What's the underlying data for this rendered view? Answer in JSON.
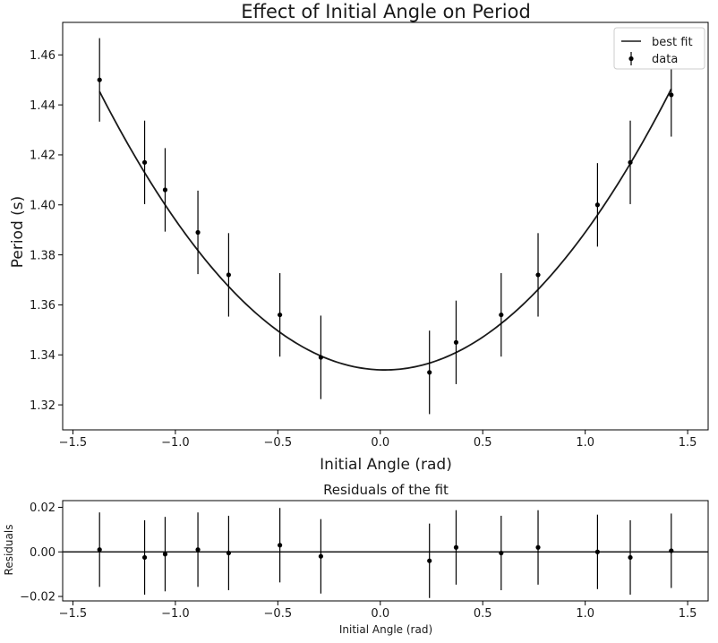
{
  "chart_data": [
    {
      "type": "scatter",
      "title": "Effect of Initial Angle on Period",
      "xlabel": "Initial Angle (rad)",
      "ylabel": "Period (s)",
      "xlim": [
        -1.55,
        1.6
      ],
      "ylim": [
        1.31,
        1.473
      ],
      "xticks": [
        -1.5,
        -1.0,
        -0.5,
        0.0,
        0.5,
        1.0,
        1.5
      ],
      "xtick_labels": [
        "−1.5",
        "−1.0",
        "−0.5",
        "0.0",
        "0.5",
        "1.0",
        "1.5"
      ],
      "yticks": [
        1.32,
        1.34,
        1.36,
        1.38,
        1.4,
        1.42,
        1.44,
        1.46
      ],
      "ytick_labels": [
        "1.32",
        "1.34",
        "1.36",
        "1.38",
        "1.40",
        "1.42",
        "1.44",
        "1.46"
      ],
      "grid": false,
      "legend": {
        "position": "top-right",
        "entries": [
          "best fit",
          "data"
        ]
      },
      "series": [
        {
          "name": "best fit",
          "kind": "line",
          "color": "#1a1a1a",
          "model": {
            "form": "a*x^2 + b*x + c",
            "a": 0.0575,
            "b": -0.0025,
            "c": 1.334
          }
        },
        {
          "name": "data",
          "kind": "errorbar",
          "color": "#000000",
          "x": [
            -1.37,
            -1.15,
            -1.05,
            -0.89,
            -0.74,
            -0.49,
            -0.29,
            0.24,
            0.37,
            0.59,
            0.77,
            1.06,
            1.22,
            1.42
          ],
          "y": [
            1.45,
            1.417,
            1.406,
            1.389,
            1.372,
            1.356,
            1.339,
            1.333,
            1.345,
            1.356,
            1.372,
            1.4,
            1.417,
            1.444
          ],
          "yerr": [
            0.0167,
            0.0167,
            0.0167,
            0.0167,
            0.0167,
            0.0167,
            0.0167,
            0.0167,
            0.0167,
            0.0167,
            0.0167,
            0.0167,
            0.0167,
            0.0167
          ]
        }
      ]
    },
    {
      "type": "scatter",
      "title": "Residuals of the fit",
      "xlabel": "Initial Angle (rad)",
      "ylabel": "Residuals",
      "xlim": [
        -1.55,
        1.6
      ],
      "ylim": [
        -0.022,
        0.023
      ],
      "xticks": [
        -1.5,
        -1.0,
        -0.5,
        0.0,
        0.5,
        1.0,
        1.5
      ],
      "xtick_labels": [
        "−1.5",
        "−1.0",
        "−0.5",
        "0.0",
        "0.5",
        "1.0",
        "1.5"
      ],
      "yticks": [
        -0.02,
        0.0,
        0.02
      ],
      "ytick_labels": [
        "−0.02",
        "0.00",
        "0.02"
      ],
      "grid": false,
      "zero_line": true,
      "series": [
        {
          "kind": "errorbar",
          "color": "#000000",
          "x": [
            -1.37,
            -1.15,
            -1.05,
            -0.89,
            -0.74,
            -0.49,
            -0.29,
            0.24,
            0.37,
            0.59,
            0.77,
            1.06,
            1.22,
            1.42
          ],
          "y": [
            0.001,
            -0.0025,
            -0.001,
            0.001,
            -0.0005,
            0.003,
            -0.002,
            -0.004,
            0.002,
            -0.0005,
            0.002,
            0.0,
            -0.0025,
            0.0005
          ],
          "yerr": [
            0.0167,
            0.0167,
            0.0167,
            0.0167,
            0.0167,
            0.0167,
            0.0167,
            0.0167,
            0.0167,
            0.0167,
            0.0167,
            0.0167,
            0.0167,
            0.0167
          ]
        }
      ]
    }
  ]
}
